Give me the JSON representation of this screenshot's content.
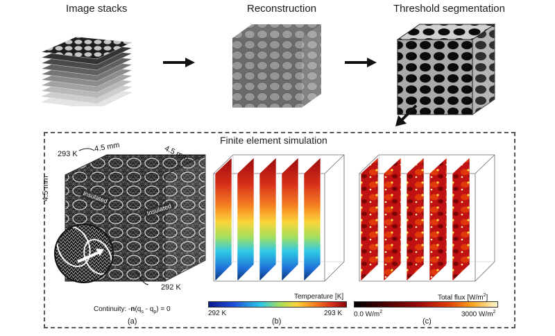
{
  "stages": [
    {
      "id": "stacks",
      "title": "Image stacks"
    },
    {
      "id": "recon",
      "title": "Reconstruction"
    },
    {
      "id": "thresh",
      "title": "Threshold segmentation"
    }
  ],
  "fem": {
    "title": "Finite element simulation",
    "panel_a": {
      "label": "(a)",
      "dim_top": "4.5 mm",
      "dim_side": "4.5 mm",
      "dim_left": "4.5 mm",
      "temp_top": "293 K",
      "temp_bottom": "292 K",
      "insulated_left": "Insulated",
      "insulated_right": "Insulated",
      "continuity_prefix": "Continuity: -",
      "continuity_n": "n",
      "continuity_mid": "(q",
      "continuity_s": "s",
      "continuity_minus": " - q",
      "continuity_p": "p",
      "continuity_end": ") = 0"
    },
    "panel_b": {
      "label": "(b)",
      "colorbar_title": "Temperature [K]",
      "min_label": "292 K",
      "max_label": "293 K"
    },
    "panel_c": {
      "label": "(c)",
      "colorbar_title": "Total flux [W/m",
      "colorbar_title_sup": "2",
      "colorbar_title_end": "]",
      "min_label": "0.0 W/m",
      "min_label_sup": "2",
      "max_label": "3000 W/m",
      "max_label_sup": "2"
    }
  },
  "colors": {
    "temp_low": "#08306b",
    "temp_high": "#9b0a0a",
    "flux_low": "#1a0000",
    "flux_high": "#ffffe0"
  }
}
